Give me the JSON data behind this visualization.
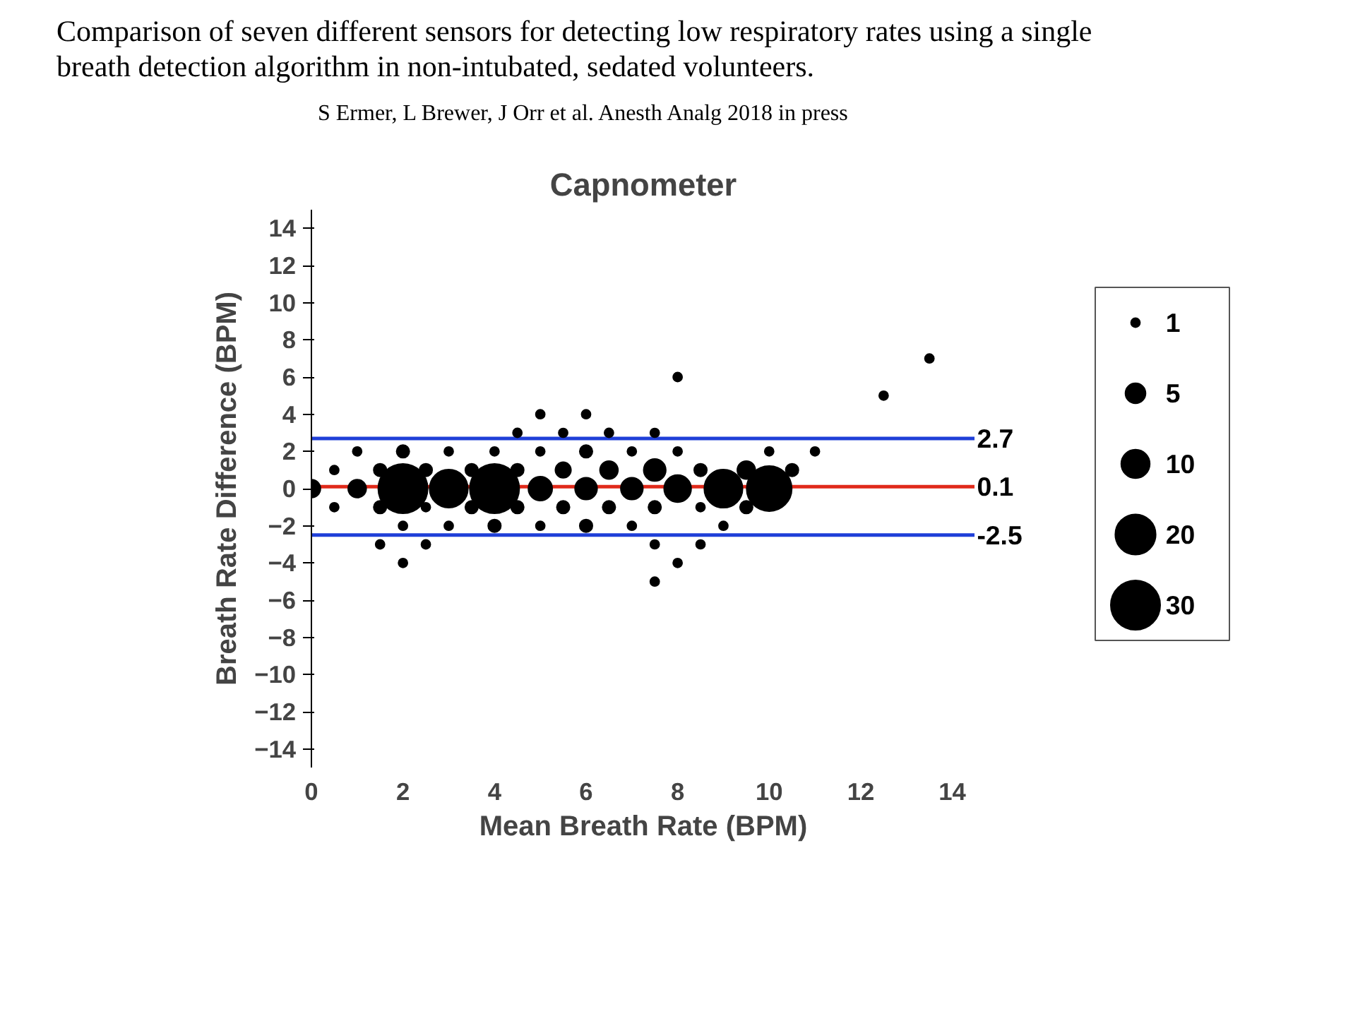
{
  "chart_data": {
    "type": "bubble",
    "title": "Capnometer",
    "xlabel": "Mean Breath Rate (BPM)",
    "ylabel": "Breath Rate Difference (BPM)",
    "annotations": [
      "Comparison of seven different sensors for detecting low respiratory rates using a single breath detection algorithm in non-intubated, sedated volunteers.",
      "S Ermer, L Brewer, J Orr et al. Anesth Analg 2018 in press"
    ],
    "xlim": [
      0,
      14.5
    ],
    "ylim": [
      -15,
      15
    ],
    "xticks": [
      0,
      2,
      4,
      6,
      8,
      10,
      12,
      14
    ],
    "yticks": [
      -14,
      -12,
      -10,
      -8,
      -6,
      -4,
      -2,
      0,
      2,
      4,
      6,
      8,
      10,
      12,
      14
    ],
    "grid": false,
    "marker": "circle",
    "size_legend": [
      1,
      5,
      10,
      20,
      30
    ],
    "ref_lines": [
      {
        "axis": "y",
        "value": 2.7,
        "label": "2.7",
        "color": "#1f3fd8"
      },
      {
        "axis": "y",
        "value": 0.1,
        "label": "0.1",
        "color": "#e02a1a"
      },
      {
        "axis": "y",
        "value": -2.5,
        "label": "-2.5",
        "color": "#1f3fd8"
      }
    ],
    "series": [
      {
        "color": "#000000",
        "x": [
          0,
          0.5,
          0.5,
          1,
          1,
          1.5,
          1.5,
          1.5,
          2,
          2,
          2,
          2,
          2.5,
          2.5,
          2.5,
          3,
          3,
          3,
          3.5,
          3.5,
          4,
          4,
          4,
          4.5,
          4.5,
          4.5,
          5,
          5,
          5,
          5,
          5.5,
          5.5,
          5.5,
          6,
          6,
          6,
          6,
          6.5,
          6.5,
          6.5,
          7,
          7,
          7,
          7.5,
          7.5,
          7.5,
          7.5,
          7.5,
          8,
          8,
          8,
          8,
          8.5,
          8.5,
          8.5,
          9,
          9,
          9.5,
          9.5,
          10,
          10,
          10.5,
          11,
          12.5,
          13.5
        ],
        "values": [
          0,
          1,
          -1,
          2,
          0,
          1,
          -1,
          -3,
          2,
          0,
          -2,
          -4,
          1,
          -1,
          -3,
          2,
          0,
          -2,
          1,
          -1,
          2,
          0,
          -2,
          3,
          1,
          -1,
          4,
          2,
          0,
          -2,
          3,
          1,
          -1,
          4,
          2,
          0,
          -2,
          3,
          1,
          -1,
          2,
          0,
          -2,
          3,
          1,
          -1,
          -3,
          -5,
          6,
          2,
          0,
          -4,
          1,
          -1,
          -3,
          0,
          -2,
          1,
          -1,
          2,
          0,
          1,
          2,
          5,
          7
        ],
        "sizes": [
          4,
          1,
          1,
          1,
          4,
          2,
          2,
          1,
          2,
          30,
          1,
          1,
          2,
          1,
          1,
          1,
          18,
          1,
          2,
          2,
          1,
          30,
          2,
          1,
          2,
          2,
          1,
          1,
          7,
          1,
          1,
          3,
          2,
          1,
          2,
          6,
          2,
          1,
          4,
          2,
          1,
          6,
          1,
          1,
          6,
          2,
          1,
          1,
          1,
          1,
          9,
          1,
          2,
          1,
          1,
          18,
          1,
          4,
          2,
          1,
          25,
          2,
          1,
          1,
          1
        ]
      }
    ]
  }
}
